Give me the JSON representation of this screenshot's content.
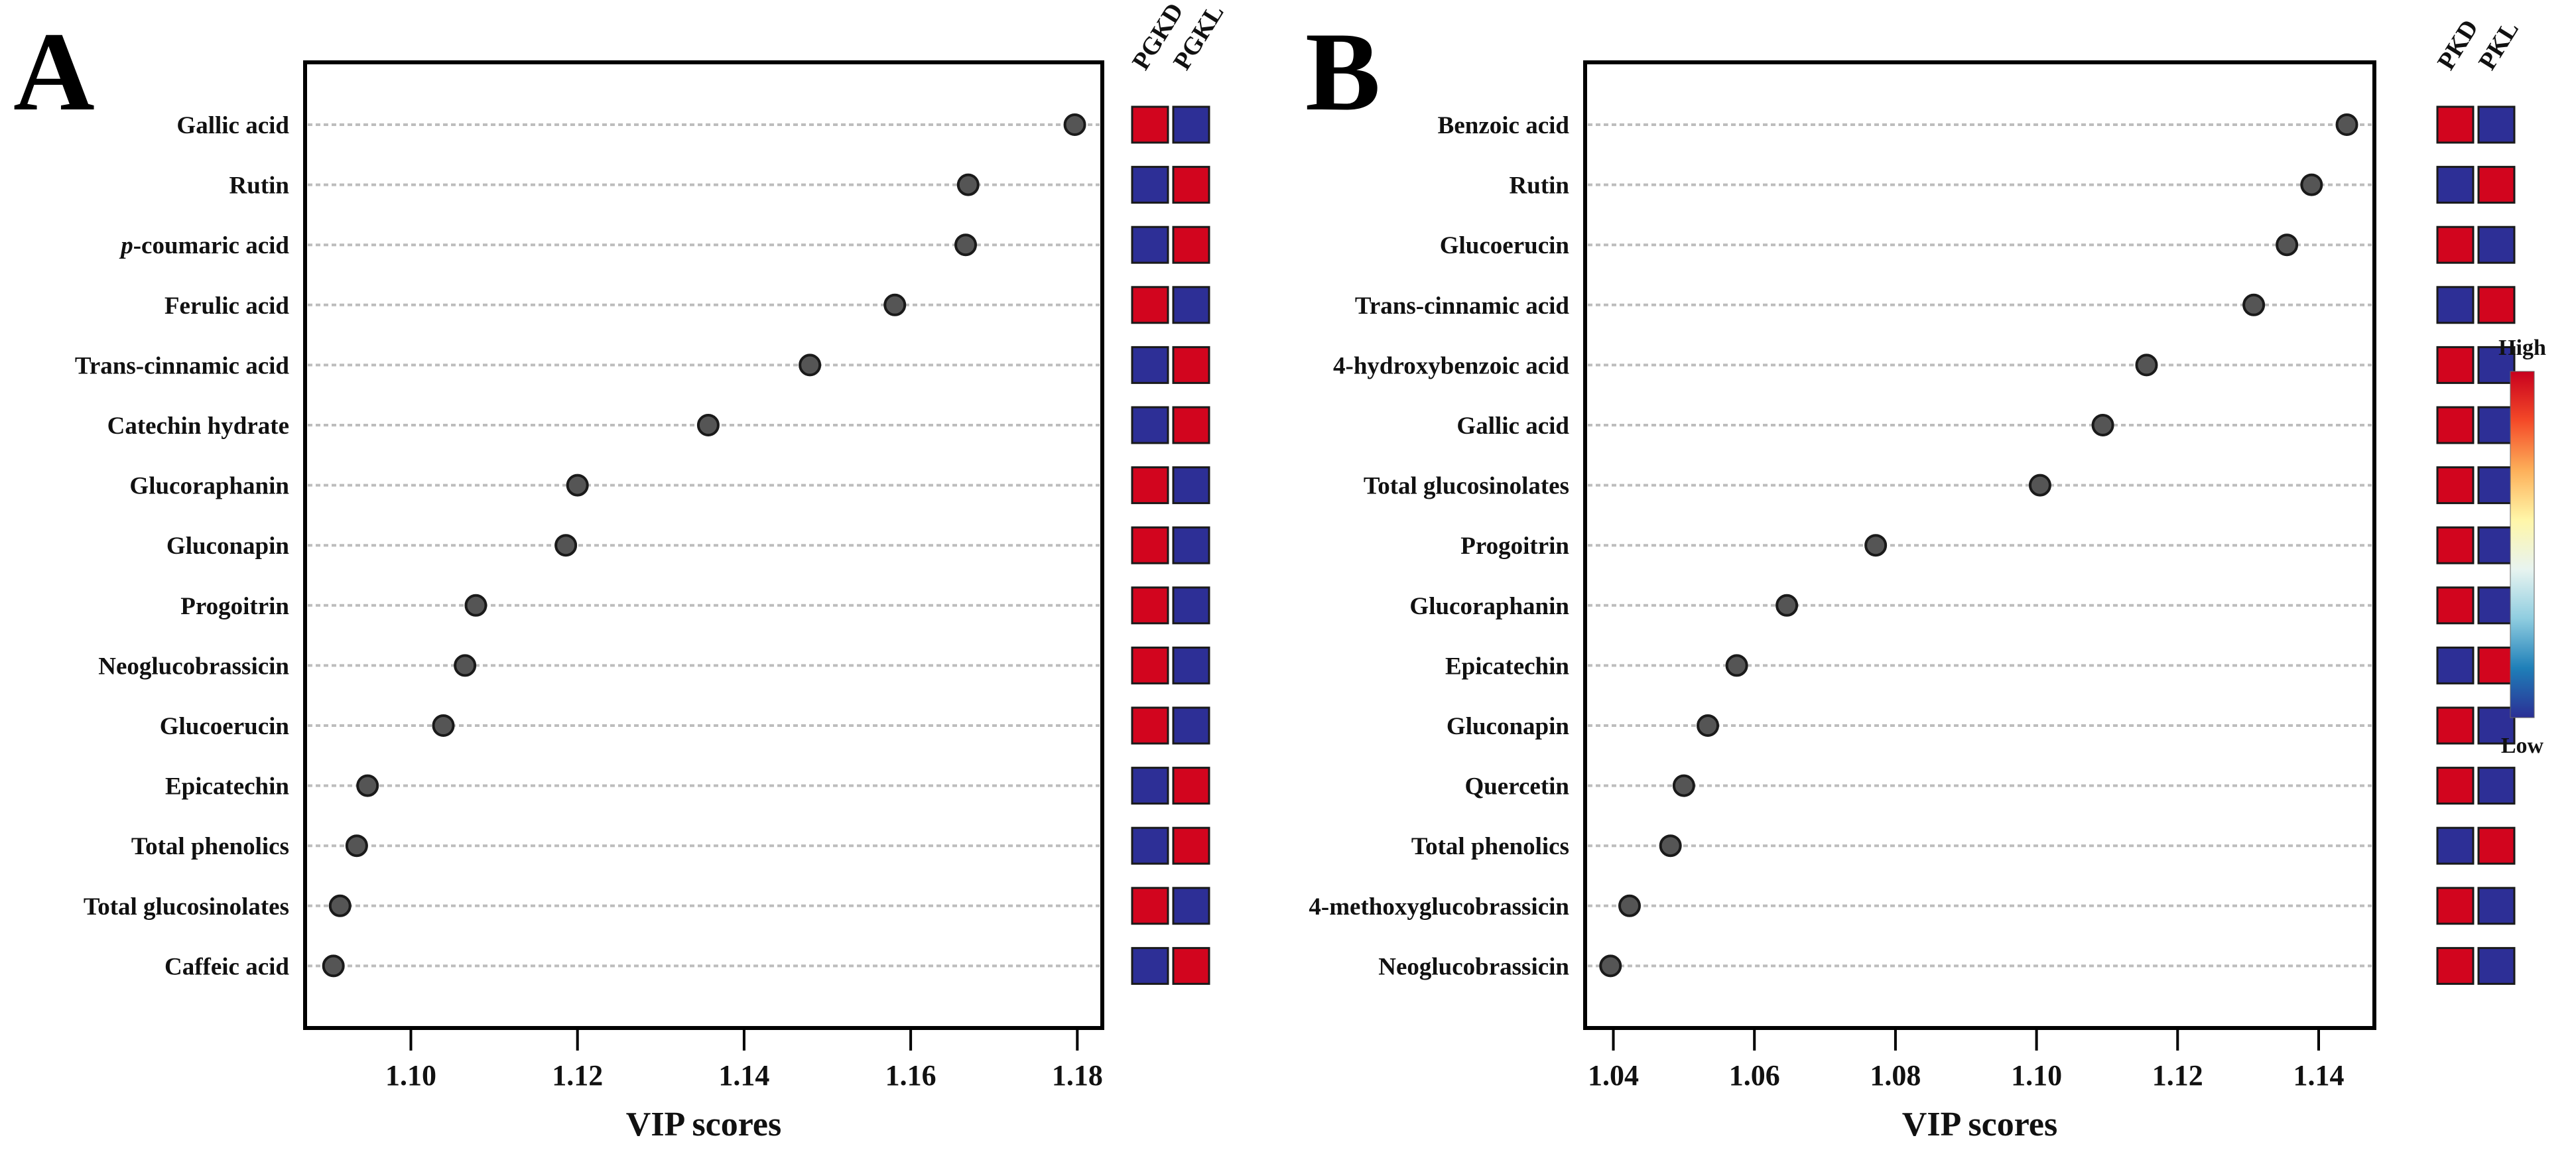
{
  "colors": {
    "high": "#d2051e",
    "low": "#2d2f96",
    "dot": "#555555",
    "grid": "#bdbdbd"
  },
  "colorbar": {
    "high_label": "High",
    "low_label": "Low",
    "stops": [
      "#2b2f95",
      "#1f7fb8",
      "#8fcde0",
      "#e8f4f0",
      "#fff6a8",
      "#fdb05a",
      "#f44a28",
      "#c8001e"
    ]
  },
  "chart_data": [
    {
      "type": "scatter",
      "panel": "A",
      "xlabel": "VIP scores",
      "xlim": [
        1.0873,
        1.183
      ],
      "xticks": [
        1.1,
        1.12,
        1.14,
        1.16,
        1.18
      ],
      "xtick_labels": [
        "1.10",
        "1.12",
        "1.14",
        "1.16",
        "1.18"
      ],
      "heatmap_columns": [
        "PGKD",
        "PGKL"
      ],
      "categories": [
        "Gallic acid",
        "Rutin",
        "p-coumaric acid",
        "Ferulic acid",
        "Trans-cinnamic acid",
        "Catechin hydrate",
        "Glucoraphanin",
        "Gluconapin",
        "Progoitrin",
        "Neoglucobrassicin",
        "Glucoerucin",
        "Epicatechin",
        "Total phenolics",
        "Total glucosinolates",
        "Caffeic acid"
      ],
      "values": [
        1.1797,
        1.1669,
        1.1666,
        1.1581,
        1.1479,
        1.1357,
        1.12,
        1.1186,
        1.1078,
        1.1065,
        1.1039,
        1.0948,
        1.0935,
        1.0915,
        1.0907
      ],
      "heatmap": [
        [
          1,
          0
        ],
        [
          0,
          1
        ],
        [
          0,
          1
        ],
        [
          1,
          0
        ],
        [
          0,
          1
        ],
        [
          0,
          1
        ],
        [
          1,
          0
        ],
        [
          1,
          0
        ],
        [
          1,
          0
        ],
        [
          1,
          0
        ],
        [
          1,
          0
        ],
        [
          0,
          1
        ],
        [
          0,
          1
        ],
        [
          1,
          0
        ],
        [
          0,
          1
        ]
      ]
    },
    {
      "type": "scatter",
      "panel": "B",
      "xlabel": "VIP scores",
      "xlim": [
        1.036,
        1.1479
      ],
      "xticks": [
        1.04,
        1.06,
        1.08,
        1.1,
        1.12,
        1.14
      ],
      "xtick_labels": [
        "1.04",
        "1.06",
        "1.08",
        "1.10",
        "1.12",
        "1.14"
      ],
      "heatmap_columns": [
        "PKD",
        "PKL"
      ],
      "categories": [
        "Benzoic acid",
        "Rutin",
        "Glucoerucin",
        "Trans-cinnamic acid",
        "4-hydroxybenzoic acid",
        "Gallic acid",
        "Total glucosinolates",
        "Progoitrin",
        "Glucoraphanin",
        "Epicatechin",
        "Gluconapin",
        "Quercetin",
        "Total phenolics",
        "4-methoxyglucobrassicin",
        "Neoglucobrassicin"
      ],
      "values": [
        1.144,
        1.139,
        1.1355,
        1.1308,
        1.1156,
        1.1094,
        1.1005,
        1.0772,
        1.0646,
        1.0575,
        1.0534,
        1.05,
        1.0481,
        1.0423,
        1.0396
      ],
      "heatmap": [
        [
          1,
          0
        ],
        [
          0,
          1
        ],
        [
          1,
          0
        ],
        [
          0,
          1
        ],
        [
          1,
          0
        ],
        [
          1,
          0
        ],
        [
          1,
          0
        ],
        [
          1,
          0
        ],
        [
          1,
          0
        ],
        [
          0,
          1
        ],
        [
          1,
          0
        ],
        [
          1,
          0
        ],
        [
          0,
          1
        ],
        [
          1,
          0
        ],
        [
          1,
          0
        ]
      ]
    }
  ]
}
